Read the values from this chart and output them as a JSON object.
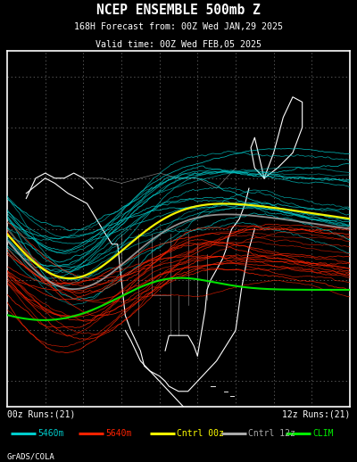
{
  "title_line1": "NCEP ENSEMBLE 500mb Z",
  "title_line2": "168H Forecast from: 00Z Wed JAN,29 2025",
  "title_line3": "Valid time: 00Z Wed FEB,05 2025",
  "bg_color": "#000000",
  "map_bg": "#000000",
  "map_border_color": "#ffffff",
  "grid_color": "#aaaaaa",
  "coast_color": "#ffffff",
  "cyan_color": "#00cccc",
  "red_color": "#ff2200",
  "yellow_color": "#ffff00",
  "gray_color": "#aaaaaa",
  "green_color": "#00ee00",
  "legend_left": "00z Runs:(21)",
  "legend_right": "12z Runs:(21)",
  "legend_items": [
    {
      "label": "5460m",
      "color": "#00cccc"
    },
    {
      "label": "5640m",
      "color": "#ff2200"
    },
    {
      "label": "Cntrl 00z",
      "color": "#ffff00"
    },
    {
      "label": "Cntrl 12z",
      "color": "#aaaaaa"
    },
    {
      "label": "CLIM",
      "color": "#00ee00"
    }
  ],
  "credit": "GrADS/COLA",
  "title_color": "#ffffff",
  "legend_text_color": "#ffffff",
  "credit_color": "#ffffff"
}
